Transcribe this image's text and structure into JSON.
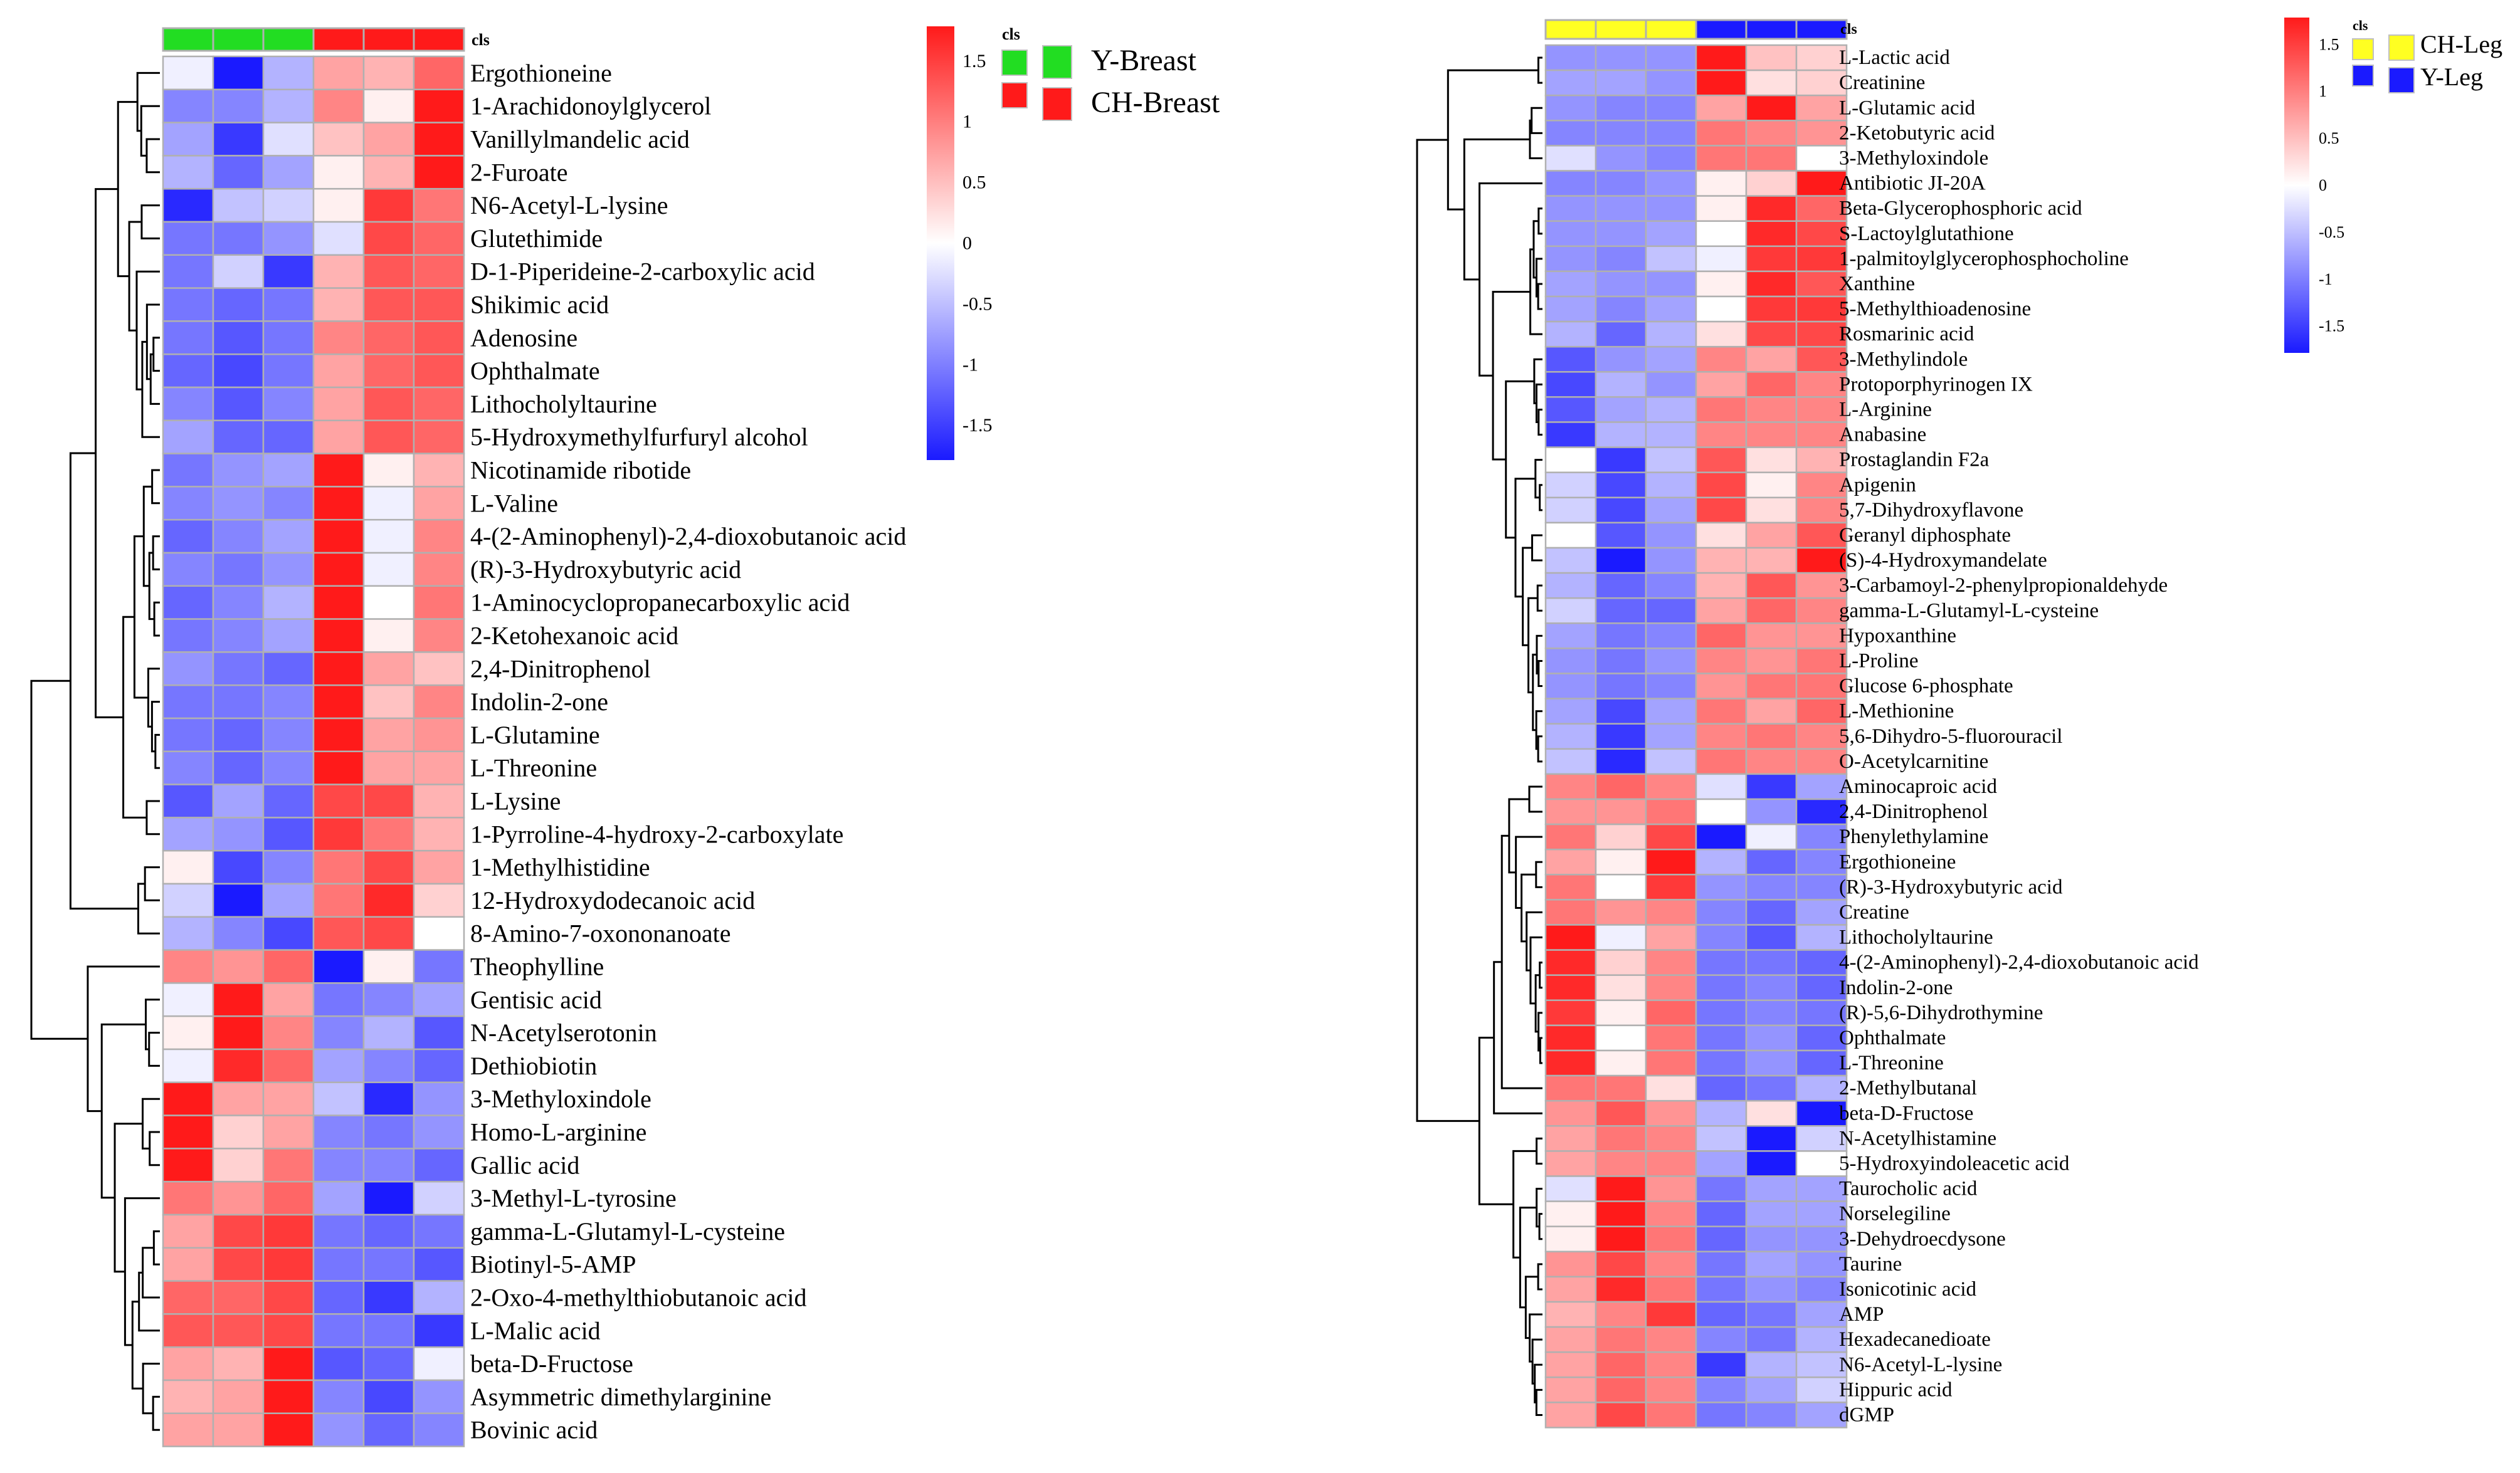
{
  "chart_data": [
    {
      "type": "heatmap",
      "title": "",
      "cls_label": "cls",
      "color_scale": {
        "min": -1.5,
        "max": 1.5,
        "ticks": [
          "1.5",
          "1",
          "0.5",
          "0",
          "-0.5",
          "-1",
          "-1.5"
        ],
        "low_color": "#1a1aff",
        "mid_color": "#ffffff",
        "high_color": "#ff1a1a"
      },
      "legend": [
        {
          "label": "Y-Breast",
          "color": "#22dd22"
        },
        {
          "label": "CH-Breast",
          "color": "#ff1a1a"
        }
      ],
      "sample_groups": [
        {
          "group": "Y-Breast",
          "color": "#22dd22"
        },
        {
          "group": "Y-Breast",
          "color": "#22dd22"
        },
        {
          "group": "Y-Breast",
          "color": "#22dd22"
        },
        {
          "group": "CH-Breast",
          "color": "#ff1a1a"
        },
        {
          "group": "CH-Breast",
          "color": "#ff1a1a"
        },
        {
          "group": "CH-Breast",
          "color": "#ff1a1a"
        }
      ],
      "rows": [
        "Ergothioneine",
        "1-Arachidonoylglycerol",
        "Vanillylmandelic acid",
        "2-Furoate",
        "N6-Acetyl-L-lysine",
        "Glutethimide",
        "D-1-Piperideine-2-carboxylic acid",
        "Shikimic acid",
        "Adenosine",
        "Ophthalmate",
        "Lithocholyltaurine",
        "5-Hydroxymethylfurfuryl alcohol",
        "Nicotinamide ribotide",
        "L-Valine",
        "4-(2-Aminophenyl)-2,4-dioxobutanoic acid",
        "(R)-3-Hydroxybutyric acid",
        "1-Aminocyclopropanecarboxylic acid",
        "2-Ketohexanoic acid",
        "2,4-Dinitrophenol",
        "Indolin-2-one",
        "L-Glutamine",
        "L-Threonine",
        "L-Lysine",
        "1-Pyrroline-4-hydroxy-2-carboxylate",
        "1-Methylhistidine",
        "12-Hydroxydodecanoic acid",
        "8-Amino-7-oxononanoate",
        "Theophylline",
        "Gentisic acid",
        "N-Acetylserotonin",
        "Dethiobiotin",
        "3-Methyloxindole",
        "Homo-L-arginine",
        "Gallic acid",
        "3-Methyl-L-tyrosine",
        "gamma-L-Glutamyl-L-cysteine",
        "Biotinyl-5-AMP",
        "2-Oxo-4-methylthiobutanoic acid",
        "L-Malic acid",
        "beta-D-Fructose",
        "Asymmetric dimethylarginine",
        "Bovinic acid"
      ],
      "values": [
        [
          -0.1,
          -1.6,
          -0.5,
          0.6,
          0.5,
          1.0
        ],
        [
          -0.8,
          -0.8,
          -0.5,
          0.8,
          0.1,
          1.5
        ],
        [
          -0.6,
          -1.3,
          -0.2,
          0.4,
          0.6,
          1.6
        ],
        [
          -0.5,
          -1.0,
          -0.6,
          0.1,
          0.5,
          1.7
        ],
        [
          -1.4,
          -0.4,
          -0.3,
          0.1,
          1.3,
          0.9
        ],
        [
          -0.9,
          -0.9,
          -0.7,
          -0.2,
          1.2,
          1.0
        ],
        [
          -0.9,
          -0.3,
          -1.3,
          0.5,
          1.1,
          1.0
        ],
        [
          -0.9,
          -1.0,
          -0.9,
          0.5,
          1.1,
          1.1
        ],
        [
          -0.9,
          -1.1,
          -0.9,
          0.8,
          1.0,
          1.1
        ],
        [
          -1.0,
          -1.2,
          -0.9,
          0.6,
          1.0,
          1.1
        ],
        [
          -0.8,
          -1.1,
          -0.8,
          0.6,
          1.1,
          1.0
        ],
        [
          -0.6,
          -1.0,
          -1.0,
          0.6,
          1.1,
          1.0
        ],
        [
          -0.9,
          -0.7,
          -0.6,
          1.6,
          0.1,
          0.5
        ],
        [
          -0.8,
          -0.7,
          -0.8,
          1.6,
          -0.1,
          0.6
        ],
        [
          -1.0,
          -0.8,
          -0.6,
          1.6,
          -0.1,
          0.8
        ],
        [
          -0.8,
          -0.9,
          -0.7,
          1.7,
          -0.1,
          0.8
        ],
        [
          -1.0,
          -0.8,
          -0.5,
          1.6,
          0.0,
          0.9
        ],
        [
          -0.9,
          -0.8,
          -0.6,
          1.6,
          0.1,
          0.8
        ],
        [
          -0.7,
          -0.9,
          -1.0,
          1.5,
          0.6,
          0.4
        ],
        [
          -0.9,
          -0.9,
          -0.8,
          1.5,
          0.4,
          0.8
        ],
        [
          -0.9,
          -1.0,
          -0.8,
          1.5,
          0.6,
          0.7
        ],
        [
          -0.8,
          -1.0,
          -0.8,
          1.5,
          0.6,
          0.6
        ],
        [
          -1.1,
          -0.6,
          -1.0,
          1.2,
          1.2,
          0.5
        ],
        [
          -0.6,
          -0.7,
          -1.1,
          1.3,
          0.9,
          0.5
        ],
        [
          0.1,
          -1.2,
          -0.8,
          0.9,
          1.2,
          0.6
        ],
        [
          -0.3,
          -1.6,
          -0.6,
          0.9,
          1.4,
          0.3
        ],
        [
          -0.5,
          -0.8,
          -1.2,
          1.1,
          1.2,
          0.0
        ],
        [
          0.8,
          0.7,
          1.0,
          -1.7,
          0.1,
          -0.9
        ],
        [
          -0.1,
          1.5,
          0.6,
          -0.9,
          -0.8,
          -0.6
        ],
        [
          0.1,
          1.5,
          0.8,
          -0.8,
          -0.5,
          -1.1
        ],
        [
          -0.1,
          1.4,
          1.0,
          -0.6,
          -0.8,
          -1.0
        ],
        [
          1.6,
          0.6,
          0.6,
          -0.4,
          -1.4,
          -0.7
        ],
        [
          1.5,
          0.3,
          0.6,
          -0.8,
          -0.9,
          -0.7
        ],
        [
          1.6,
          0.3,
          0.9,
          -0.8,
          -0.8,
          -1.0
        ],
        [
          0.9,
          0.7,
          1.0,
          -0.6,
          -1.7,
          -0.3
        ],
        [
          0.6,
          1.2,
          1.3,
          -0.9,
          -1.0,
          -0.9
        ],
        [
          0.6,
          1.2,
          1.3,
          -0.9,
          -0.9,
          -1.1
        ],
        [
          1.0,
          1.0,
          1.2,
          -1.0,
          -1.3,
          -0.5
        ],
        [
          1.1,
          1.1,
          1.2,
          -0.9,
          -0.9,
          -1.3
        ],
        [
          0.6,
          0.5,
          1.6,
          -1.1,
          -1.0,
          -0.1
        ],
        [
          0.5,
          0.6,
          1.6,
          -0.8,
          -1.2,
          -0.7
        ],
        [
          0.6,
          0.6,
          1.6,
          -0.7,
          -1.0,
          -0.8
        ]
      ]
    },
    {
      "type": "heatmap",
      "title": "",
      "cls_label": "cls",
      "color_scale": {
        "min": -1.5,
        "max": 1.5,
        "ticks": [
          "1.5",
          "1",
          "0.5",
          "0",
          "-0.5",
          "-1",
          "-1.5"
        ],
        "low_color": "#1a1aff",
        "mid_color": "#ffffff",
        "high_color": "#ff1a1a"
      },
      "legend": [
        {
          "label": "CH-Leg",
          "color": "#ffff22"
        },
        {
          "label": "Y-Leg",
          "color": "#1a1aff"
        }
      ],
      "sample_groups": [
        {
          "group": "CH-Leg",
          "color": "#ffff22"
        },
        {
          "group": "CH-Leg",
          "color": "#ffff22"
        },
        {
          "group": "CH-Leg",
          "color": "#ffff22"
        },
        {
          "group": "Y-Leg",
          "color": "#1a1aff"
        },
        {
          "group": "Y-Leg",
          "color": "#1a1aff"
        },
        {
          "group": "Y-Leg",
          "color": "#1a1aff"
        }
      ],
      "rows": [
        "L-Lactic acid",
        "Creatinine",
        "L-Glutamic acid",
        "2-Ketobutyric acid",
        "3-Methyloxindole",
        "Antibiotic JI-20A",
        "Beta-Glycerophosphoric acid",
        "S-Lactoylglutathione",
        "1-palmitoylglycerophosphocholine",
        "Xanthine",
        "5-Methylthioadenosine",
        "Rosmarinic acid",
        "3-Methylindole",
        "Protoporphyrinogen IX",
        "L-Arginine",
        "Anabasine",
        "Prostaglandin F2a",
        "Apigenin",
        "5,7-Dihydroxyflavone",
        "Geranyl diphosphate",
        "(S)-4-Hydroxymandelate",
        "3-Carbamoyl-2-phenylpropionaldehyde",
        "gamma-L-Glutamyl-L-cysteine",
        "Hypoxanthine",
        "L-Proline",
        "Glucose 6-phosphate",
        "L-Methionine",
        "5,6-Dihydro-5-fluorouracil",
        "O-Acetylcarnitine",
        "Aminocaproic acid",
        "2,4-Dinitrophenol",
        "Phenylethylamine",
        "Ergothioneine",
        "(R)-3-Hydroxybutyric acid",
        "Creatine",
        "Lithocholyltaurine",
        "4-(2-Aminophenyl)-2,4-dioxobutanoic acid",
        "Indolin-2-one",
        "(R)-5,6-Dihydrothymine",
        "Ophthalmate",
        "L-Threonine",
        "2-Methylbutanal",
        "beta-D-Fructose",
        "N-Acetylhistamine",
        "5-Hydroxyindoleacetic acid",
        "Taurocholic acid",
        "Norselegiline",
        "3-Dehydroecdysone",
        "Taurine",
        "Isonicotinic acid",
        "AMP",
        "Hexadecanedioate",
        "N6-Acetyl-L-lysine",
        "Hippuric acid",
        "dGMP"
      ],
      "values": [
        [
          -0.7,
          -0.7,
          -0.7,
          1.7,
          0.4,
          0.3
        ],
        [
          -0.6,
          -0.6,
          -0.7,
          1.6,
          0.2,
          0.3
        ],
        [
          -0.7,
          -0.8,
          -0.8,
          0.6,
          1.6,
          0.6
        ],
        [
          -0.8,
          -0.8,
          -0.8,
          0.9,
          0.8,
          0.7
        ],
        [
          -0.2,
          -0.7,
          -0.8,
          0.9,
          0.9,
          0.0
        ],
        [
          -0.8,
          -0.8,
          -0.7,
          0.1,
          0.3,
          1.8
        ],
        [
          -0.7,
          -0.7,
          -0.7,
          0.1,
          1.4,
          1.0
        ],
        [
          -0.7,
          -0.7,
          -0.6,
          0.0,
          1.4,
          1.2
        ],
        [
          -0.7,
          -0.8,
          -0.4,
          -0.1,
          1.3,
          1.3
        ],
        [
          -0.6,
          -0.7,
          -0.7,
          0.1,
          1.4,
          1.1
        ],
        [
          -0.6,
          -0.8,
          -0.6,
          0.0,
          1.3,
          1.3
        ],
        [
          -0.5,
          -1.0,
          -0.5,
          0.2,
          1.2,
          1.2
        ],
        [
          -1.1,
          -0.7,
          -0.6,
          0.8,
          0.6,
          1.1
        ],
        [
          -1.2,
          -0.5,
          -0.7,
          0.6,
          1.0,
          0.8
        ],
        [
          -1.1,
          -0.6,
          -0.5,
          0.9,
          0.8,
          0.8
        ],
        [
          -1.3,
          -0.5,
          -0.5,
          0.8,
          0.8,
          0.8
        ],
        [
          0.0,
          -1.3,
          -0.4,
          1.1,
          0.2,
          0.5
        ],
        [
          -0.3,
          -1.2,
          -0.5,
          1.2,
          0.1,
          0.8
        ],
        [
          -0.3,
          -1.2,
          -0.6,
          1.2,
          0.2,
          0.8
        ],
        [
          0.0,
          -1.1,
          -0.7,
          0.2,
          0.6,
          1.1
        ],
        [
          -0.4,
          -1.5,
          -0.7,
          0.5,
          0.5,
          1.6
        ],
        [
          -0.5,
          -1.0,
          -0.8,
          0.5,
          1.1,
          0.7
        ],
        [
          -0.3,
          -1.0,
          -1.0,
          0.6,
          1.0,
          0.8
        ],
        [
          -0.6,
          -0.9,
          -0.8,
          1.0,
          0.7,
          0.7
        ],
        [
          -0.7,
          -0.9,
          -0.7,
          0.8,
          0.7,
          0.9
        ],
        [
          -0.7,
          -0.9,
          -0.8,
          0.7,
          0.9,
          0.9
        ],
        [
          -0.6,
          -1.2,
          -0.6,
          0.9,
          0.6,
          1.0
        ],
        [
          -0.5,
          -1.3,
          -0.6,
          0.8,
          0.9,
          0.8
        ],
        [
          -0.4,
          -1.4,
          -0.4,
          0.9,
          0.8,
          0.8
        ],
        [
          0.8,
          1.0,
          0.8,
          -0.2,
          -1.3,
          -0.6
        ],
        [
          0.7,
          0.7,
          0.9,
          0.0,
          -0.7,
          -1.4
        ],
        [
          0.9,
          0.3,
          1.2,
          -1.5,
          -0.1,
          -0.8
        ],
        [
          0.6,
          0.1,
          1.5,
          -0.5,
          -1.0,
          -0.8
        ],
        [
          0.9,
          0.0,
          1.3,
          -0.7,
          -0.8,
          -0.8
        ],
        [
          0.9,
          0.7,
          0.8,
          -0.8,
          -1.0,
          -0.6
        ],
        [
          1.7,
          -0.1,
          0.6,
          -0.8,
          -1.1,
          -0.5
        ],
        [
          1.4,
          0.3,
          0.8,
          -0.9,
          -0.9,
          -1.0
        ],
        [
          1.4,
          0.2,
          0.8,
          -0.9,
          -0.8,
          -1.0
        ],
        [
          1.3,
          0.1,
          1.0,
          -0.9,
          -0.8,
          -0.9
        ],
        [
          1.4,
          0.0,
          0.9,
          -0.9,
          -0.7,
          -1.0
        ],
        [
          1.4,
          0.1,
          0.9,
          -0.9,
          -0.7,
          -1.0
        ],
        [
          0.9,
          0.9,
          0.2,
          -1.0,
          -0.9,
          -0.5
        ],
        [
          0.7,
          1.1,
          0.7,
          -0.5,
          0.2,
          -1.6
        ],
        [
          0.6,
          0.9,
          0.8,
          -0.4,
          -1.5,
          -0.3
        ],
        [
          0.6,
          0.8,
          0.8,
          -0.6,
          -1.7,
          0.0
        ],
        [
          -0.2,
          1.5,
          0.7,
          -0.9,
          -0.6,
          -0.6
        ],
        [
          0.1,
          1.6,
          0.8,
          -1.0,
          -0.6,
          -0.6
        ],
        [
          0.1,
          1.6,
          0.9,
          -1.0,
          -0.7,
          -0.7
        ],
        [
          0.7,
          1.2,
          0.8,
          -0.9,
          -0.6,
          -0.7
        ],
        [
          0.6,
          1.4,
          0.9,
          -0.9,
          -0.7,
          -0.8
        ],
        [
          0.5,
          0.8,
          1.3,
          -1.0,
          -0.9,
          -0.6
        ],
        [
          0.6,
          0.9,
          0.8,
          -0.8,
          -0.9,
          -0.5
        ],
        [
          0.6,
          1.0,
          0.8,
          -1.3,
          -0.5,
          -0.4
        ],
        [
          0.6,
          1.0,
          0.8,
          -0.8,
          -0.6,
          -0.3
        ],
        [
          0.6,
          1.2,
          0.9,
          -0.9,
          -0.8,
          -0.6
        ]
      ]
    }
  ]
}
